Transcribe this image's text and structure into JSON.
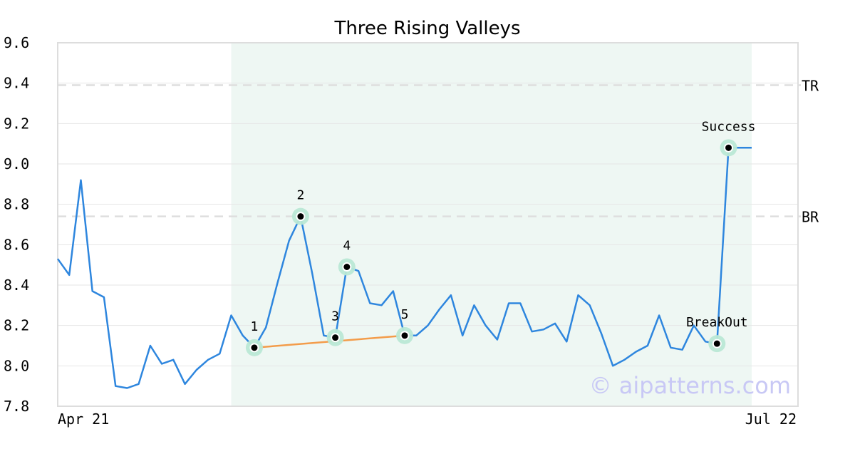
{
  "chart_data": {
    "type": "line",
    "title": "Three Rising Valleys",
    "ylim": [
      7.8,
      9.6
    ],
    "yticks": [
      "7.8",
      "8.0",
      "8.2",
      "8.4",
      "8.6",
      "8.8",
      "9.0",
      "9.2",
      "9.4",
      "9.6"
    ],
    "x_labels": {
      "start": "Apr 21",
      "end": "Jul 22"
    },
    "grid": true,
    "series": [
      {
        "color": "#2e86de",
        "values": [
          8.53,
          8.45,
          8.92,
          8.37,
          8.34,
          7.9,
          7.89,
          7.91,
          8.1,
          8.01,
          8.03,
          7.91,
          7.98,
          8.03,
          8.06,
          8.25,
          8.15,
          8.09,
          8.19,
          8.41,
          8.62,
          8.74,
          8.46,
          8.15,
          8.14,
          8.49,
          8.47,
          8.31,
          8.3,
          8.37,
          8.15,
          8.15,
          8.2,
          8.28,
          8.35,
          8.15,
          8.3,
          8.2,
          8.13,
          8.31,
          8.31,
          8.17,
          8.18,
          8.21,
          8.12,
          8.35,
          8.3,
          8.16,
          8.0,
          8.03,
          8.07,
          8.1,
          8.25,
          8.09,
          8.08,
          8.2,
          8.12,
          8.11,
          9.08,
          9.08,
          9.08
        ]
      }
    ],
    "highlight_range": {
      "start_index": 15,
      "end_index": 60,
      "color": "#eef7f3"
    },
    "levels": [
      {
        "label": "TR",
        "value": 9.39
      },
      {
        "label": "BR",
        "value": 8.74
      }
    ],
    "trendline": {
      "color": "#f39c4a",
      "from_index": 17,
      "to_index": 30
    },
    "pattern_points": [
      {
        "label": "1",
        "index": 17
      },
      {
        "label": "2",
        "index": 21
      },
      {
        "label": "3",
        "index": 24
      },
      {
        "label": "4",
        "index": 25
      },
      {
        "label": "5",
        "index": 30
      },
      {
        "label": "BreakOut",
        "index": 57
      },
      {
        "label": "Success",
        "index": 58
      }
    ]
  },
  "watermark": "© aipatterns.com"
}
